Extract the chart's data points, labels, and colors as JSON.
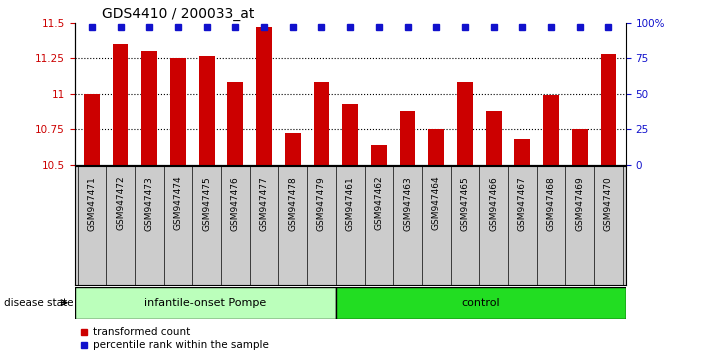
{
  "title": "GDS4410 / 200033_at",
  "samples": [
    "GSM947471",
    "GSM947472",
    "GSM947473",
    "GSM947474",
    "GSM947475",
    "GSM947476",
    "GSM947477",
    "GSM947478",
    "GSM947479",
    "GSM947461",
    "GSM947462",
    "GSM947463",
    "GSM947464",
    "GSM947465",
    "GSM947466",
    "GSM947467",
    "GSM947468",
    "GSM947469",
    "GSM947470"
  ],
  "red_values": [
    11.0,
    11.35,
    11.3,
    11.25,
    11.27,
    11.08,
    11.47,
    10.72,
    11.08,
    10.93,
    10.64,
    10.88,
    10.75,
    11.08,
    10.88,
    10.68,
    10.99,
    10.75,
    11.28
  ],
  "ylim_left": [
    10.5,
    11.5
  ],
  "ylim_right": [
    0,
    100
  ],
  "yticks_left": [
    10.5,
    10.75,
    11.0,
    11.25,
    11.5
  ],
  "yticks_right": [
    0,
    25,
    50,
    75,
    100
  ],
  "ytick_labels_left": [
    "10.5",
    "10.75",
    "11",
    "11.25",
    "11.5"
  ],
  "ytick_labels_right": [
    "0",
    "25",
    "50",
    "75",
    "100%"
  ],
  "group1_label": "infantile-onset Pompe",
  "group2_label": "control",
  "group1_count": 9,
  "group2_count": 10,
  "disease_state_label": "disease state",
  "legend_red": "transformed count",
  "legend_blue": "percentile rank within the sample",
  "bar_color": "#CC0000",
  "blue_color": "#1111CC",
  "group1_bg": "#BBFFBB",
  "group2_bg": "#22DD22",
  "sample_bg": "#CCCCCC",
  "bar_bottom": 10.5,
  "grid_lines": [
    10.75,
    11.0,
    11.25
  ]
}
